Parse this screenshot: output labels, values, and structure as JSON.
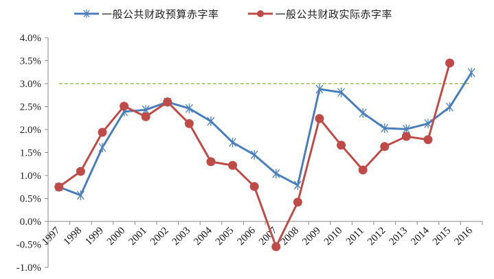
{
  "chart_data": {
    "type": "line",
    "title": "",
    "xlabel": "",
    "ylabel": "",
    "ylim": [
      -0.01,
      0.04
    ],
    "y_ticks": [
      "-1.0%",
      "-0.5%",
      "0.0%",
      "0.5%",
      "1.0%",
      "1.5%",
      "2.0%",
      "2.5%",
      "3.0%",
      "3.5%",
      "4.0%"
    ],
    "y_tick_values": [
      -1.0,
      -0.5,
      0.0,
      0.5,
      1.0,
      1.5,
      2.0,
      2.5,
      3.0,
      3.5,
      4.0
    ],
    "categories": [
      "1997",
      "1998",
      "1999",
      "2000",
      "2001",
      "2002",
      "2003",
      "2004",
      "2005",
      "2006",
      "2007",
      "2008",
      "2009",
      "2010",
      "2011",
      "2012",
      "2013",
      "2014",
      "2015",
      "2016"
    ],
    "series": [
      {
        "name": "一般公共财政预算赤字率",
        "color": "#4A7EBB",
        "marker": "asterisk",
        "values": [
          0.75,
          0.57,
          1.61,
          2.39,
          2.43,
          2.6,
          2.46,
          2.18,
          1.72,
          1.45,
          1.04,
          0.79,
          2.88,
          2.81,
          2.36,
          2.03,
          2.01,
          2.13,
          2.49,
          3.24
        ]
      },
      {
        "name": "一般公共财政实际赤字率",
        "color": "#BE4B48",
        "marker": "circle",
        "values": [
          0.75,
          1.09,
          1.94,
          2.51,
          2.28,
          2.6,
          2.13,
          1.3,
          1.22,
          0.76,
          -0.55,
          0.42,
          2.24,
          1.66,
          1.12,
          1.63,
          1.85,
          1.78,
          3.45,
          null
        ]
      }
    ],
    "reference_lines": [
      {
        "value": 3.0,
        "style": "dashed",
        "color": "#9BBB59"
      }
    ],
    "legend_position": "top",
    "grid": false,
    "units": "%"
  },
  "legend": {
    "items": [
      {
        "label": "一般公共财政预算赤字率",
        "color": "#4A7EBB",
        "marker": "asterisk-icon"
      },
      {
        "label": "一般公共财政实际赤字率",
        "color": "#BE4B48",
        "marker": "circle-icon"
      }
    ]
  }
}
